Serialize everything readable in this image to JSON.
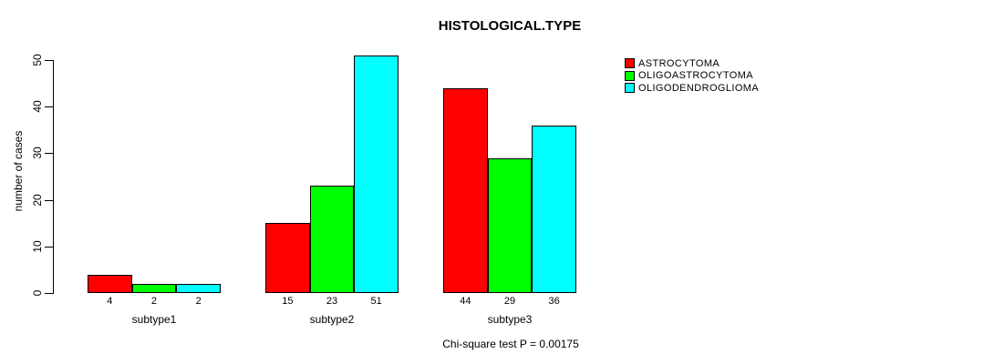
{
  "chart_data": {
    "type": "bar",
    "title": "HISTOLOGICAL.TYPE",
    "xlabel": "",
    "ylabel": "number of cases",
    "categories": [
      "subtype1",
      "subtype2",
      "subtype3"
    ],
    "series": [
      {
        "name": "ASTROCYTOMA",
        "color": "#ff0000",
        "values": [
          4,
          15,
          44
        ]
      },
      {
        "name": "OLIGOASTROCYTOMA",
        "color": "#00ff00",
        "values": [
          2,
          23,
          29
        ]
      },
      {
        "name": "OLIGODENDROGLIOMA",
        "color": "#00ffff",
        "values": [
          2,
          51,
          36
        ]
      }
    ],
    "ylim": [
      0,
      50
    ],
    "yticks": [
      0,
      10,
      20,
      30,
      40,
      50
    ],
    "grid": false,
    "bar_value_labels_shown": true,
    "legend_position": "top-right",
    "annotation": "Chi-square test P = 0.00175"
  }
}
